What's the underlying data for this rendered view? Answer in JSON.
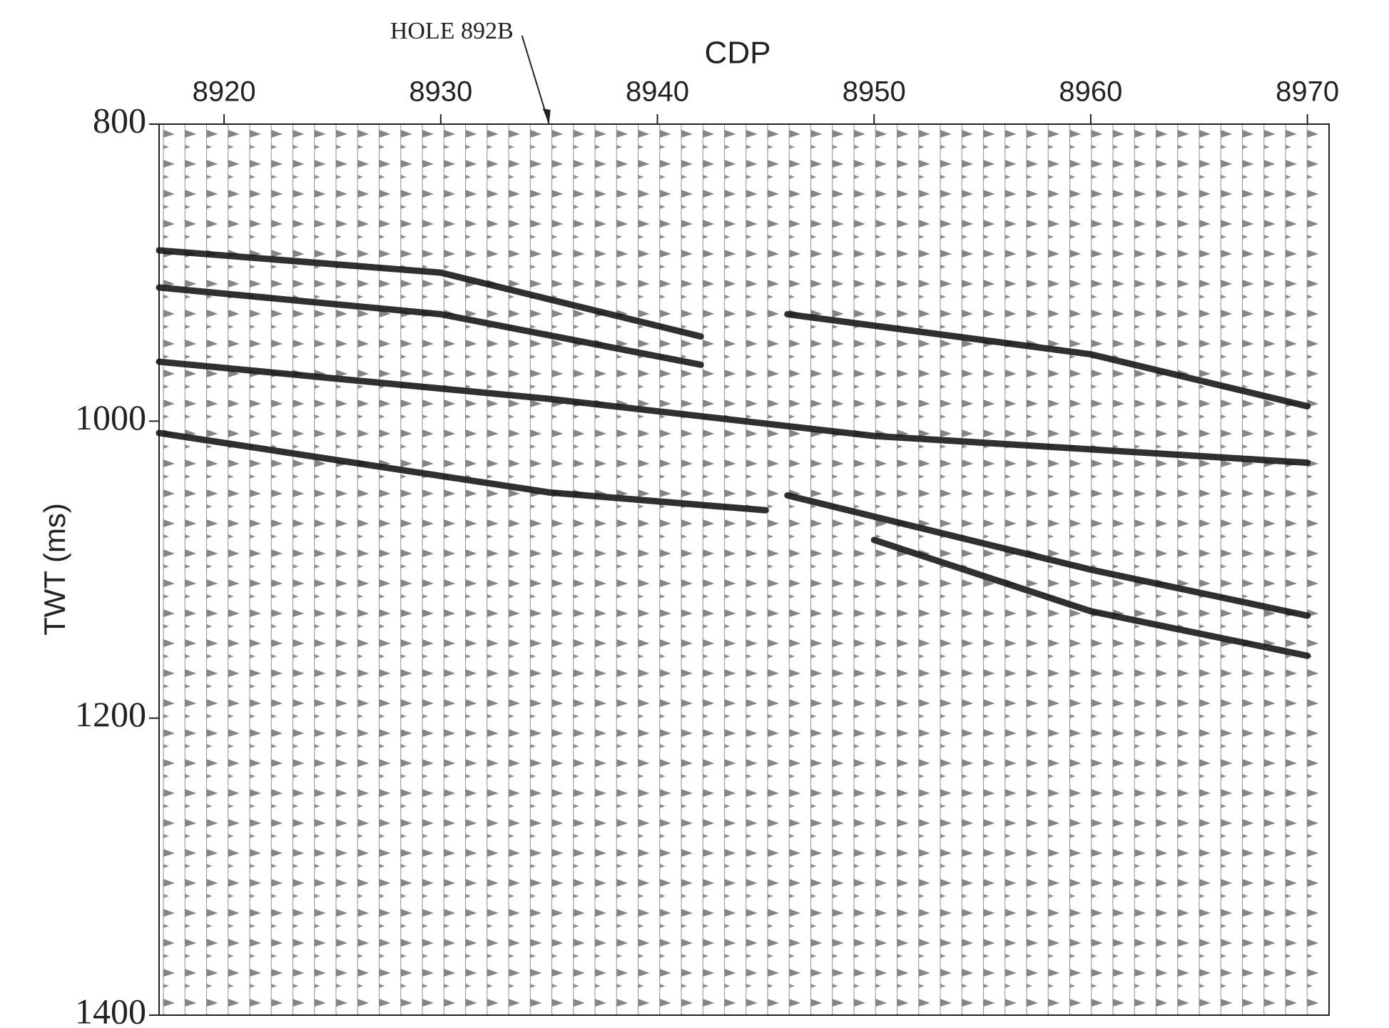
{
  "chart_data": {
    "type": "seismic",
    "x_label": "CDP",
    "y_label": "TWT (ms)",
    "annotation": {
      "text": "HOLE 892B",
      "x": 8935
    },
    "xlim": [
      8917,
      8971
    ],
    "xticks": [
      8920,
      8930,
      8940,
      8950,
      8960,
      8970
    ],
    "ylim": [
      800,
      1400
    ],
    "yticks": [
      800,
      1000,
      1200,
      1400
    ],
    "y_inverted": true,
    "color": "#1a1a1a",
    "series": [
      {
        "x": [
          8917,
          8930,
          8942
        ],
        "values": [
          885,
          900,
          943
        ]
      },
      {
        "x": [
          8917,
          8930,
          8942
        ],
        "values": [
          910,
          928,
          962
        ]
      },
      {
        "x": [
          8946,
          8960,
          8970
        ],
        "values": [
          928,
          955,
          990
        ]
      },
      {
        "x": [
          8917,
          8935,
          8950,
          8970
        ],
        "values": [
          960,
          985,
          1010,
          1028
        ]
      },
      {
        "x": [
          8917,
          8935,
          8945
        ],
        "values": [
          1008,
          1048,
          1060
        ]
      },
      {
        "x": [
          8946,
          8960,
          8970
        ],
        "values": [
          1050,
          1100,
          1131
        ]
      },
      {
        "x": [
          8950,
          8960,
          8970
        ],
        "values": [
          1080,
          1128,
          1158
        ]
      }
    ]
  }
}
